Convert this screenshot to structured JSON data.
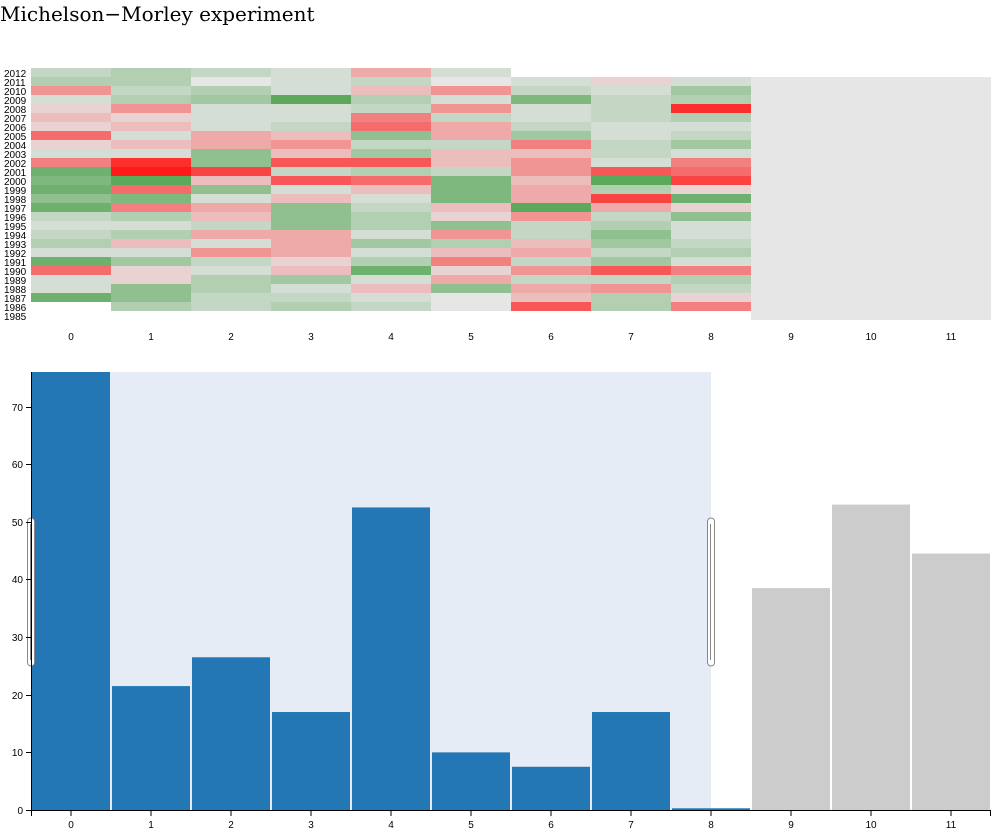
{
  "title": "Michelson−Morley experiment",
  "colors": {
    "bar": "#2377b4",
    "bar_unselected": "#cccccc",
    "brush_fill": "#e6ecf5",
    "heat_empty": "#e6e6e6",
    "heat_low": "#ff1a1a",
    "heat_mid": "#e6e6e6",
    "heat_high": "#3a9a3a"
  },
  "chart_data": [
    {
      "type": "heatmap",
      "x_ticks": [
        "0",
        "1",
        "2",
        "3",
        "4",
        "5",
        "6",
        "7",
        "8",
        "9",
        "10",
        "11"
      ],
      "y_ticks": [
        "2012",
        "2011",
        "2010",
        "2009",
        "2008",
        "2007",
        "2006",
        "2005",
        "2004",
        "2003",
        "2002",
        "2001",
        "2000",
        "1999",
        "1998",
        "1997",
        "1996",
        "1995",
        "1994",
        "1993",
        "1992",
        "1991",
        "1990",
        "1989",
        "1988",
        "1987",
        "1986",
        "1985"
      ],
      "values": [
        [
          2,
          3,
          2,
          1,
          -3,
          1,
          null,
          null,
          null,
          null,
          null,
          null
        ],
        [
          3,
          3,
          0,
          1,
          2,
          0,
          1,
          -1,
          1,
          null,
          null,
          null
        ],
        [
          -4,
          2,
          3,
          1,
          -2,
          -4,
          2,
          1,
          4,
          null,
          null,
          null
        ],
        [
          1,
          3,
          4,
          8,
          3,
          1,
          6,
          2,
          3,
          null,
          null,
          null
        ],
        [
          -1,
          -4,
          1,
          1,
          2,
          -4,
          1,
          2,
          -9,
          null,
          null,
          null
        ],
        [
          -2,
          -1,
          1,
          1,
          -5,
          2,
          1,
          2,
          3,
          null,
          null,
          null
        ],
        [
          -1,
          -2,
          1,
          2,
          -6,
          -3,
          2,
          1,
          1,
          null,
          null,
          null
        ],
        [
          -6,
          1,
          -3,
          -2,
          5,
          -3,
          4,
          1,
          2,
          null,
          null,
          null
        ],
        [
          -1,
          -2,
          -3,
          -4,
          2,
          2,
          -5,
          2,
          4,
          null,
          null,
          null
        ],
        [
          1,
          1,
          5,
          -2,
          4,
          -2,
          -2,
          2,
          1,
          null,
          null,
          null
        ],
        [
          -5,
          -9,
          5,
          -7,
          -7,
          -2,
          -4,
          1,
          -5,
          null,
          null,
          null
        ],
        [
          7,
          -10,
          -8,
          2,
          3,
          2,
          -4,
          -7,
          -6,
          null,
          null,
          null
        ],
        [
          6,
          8,
          -2,
          -7,
          -6,
          6,
          -2,
          8,
          -8,
          null,
          null,
          null
        ],
        [
          7,
          -6,
          5,
          1,
          -2,
          6,
          -3,
          3,
          -1,
          null,
          null,
          null
        ],
        [
          5,
          6,
          1,
          -2,
          1,
          6,
          -3,
          -8,
          7,
          null,
          null,
          null
        ],
        [
          7,
          -5,
          -3,
          5,
          2,
          -2,
          8,
          -3,
          -1,
          null,
          null,
          null
        ],
        [
          2,
          3,
          -2,
          5,
          3,
          -1,
          -4,
          2,
          5,
          null,
          null,
          null
        ],
        [
          1,
          1,
          2,
          5,
          3,
          5,
          2,
          3,
          1,
          null,
          null,
          null
        ],
        [
          2,
          3,
          -3,
          -3,
          1,
          -4,
          2,
          5,
          1,
          null,
          null,
          null
        ],
        [
          3,
          -2,
          1,
          -3,
          4,
          3,
          -2,
          4,
          2,
          null,
          null,
          null
        ],
        [
          1,
          1,
          -4,
          -3,
          1,
          -2,
          -3,
          2,
          3,
          null,
          null,
          null
        ],
        [
          7,
          4,
          2,
          -1,
          3,
          -5,
          2,
          4,
          1,
          null,
          null,
          null
        ],
        [
          -6,
          -1,
          1,
          -2,
          7,
          -1,
          -4,
          -7,
          -5,
          null,
          null,
          null
        ],
        [
          1,
          -1,
          3,
          4,
          1,
          -3,
          2,
          2,
          3,
          null,
          null,
          null
        ],
        [
          1,
          5,
          3,
          1,
          -2,
          5,
          -3,
          -4,
          2,
          null,
          null,
          null
        ],
        [
          7,
          5,
          2,
          2,
          1,
          0,
          -2,
          3,
          -1,
          null,
          null,
          null
        ],
        [
          null,
          3,
          2,
          3,
          2,
          0,
          -7,
          3,
          -5,
          null,
          null,
          null
        ],
        [
          null,
          null,
          null,
          null,
          null,
          null,
          null,
          null,
          null,
          null,
          null,
          null
        ]
      ]
    },
    {
      "type": "bar",
      "categories": [
        "0",
        "1",
        "2",
        "3",
        "4",
        "5",
        "6",
        "7",
        "8",
        "9",
        "10",
        "11"
      ],
      "values": [
        76,
        21.5,
        26.5,
        17,
        52.5,
        10,
        7.5,
        17,
        0.3,
        38.5,
        53,
        44.5
      ],
      "selected": [
        true,
        true,
        true,
        true,
        true,
        true,
        true,
        true,
        true,
        false,
        false,
        false
      ],
      "brush_range": [
        0,
        8.5
      ],
      "ylim": [
        0,
        76
      ],
      "y_ticks": [
        0,
        10,
        20,
        30,
        40,
        50,
        60,
        70
      ]
    }
  ]
}
